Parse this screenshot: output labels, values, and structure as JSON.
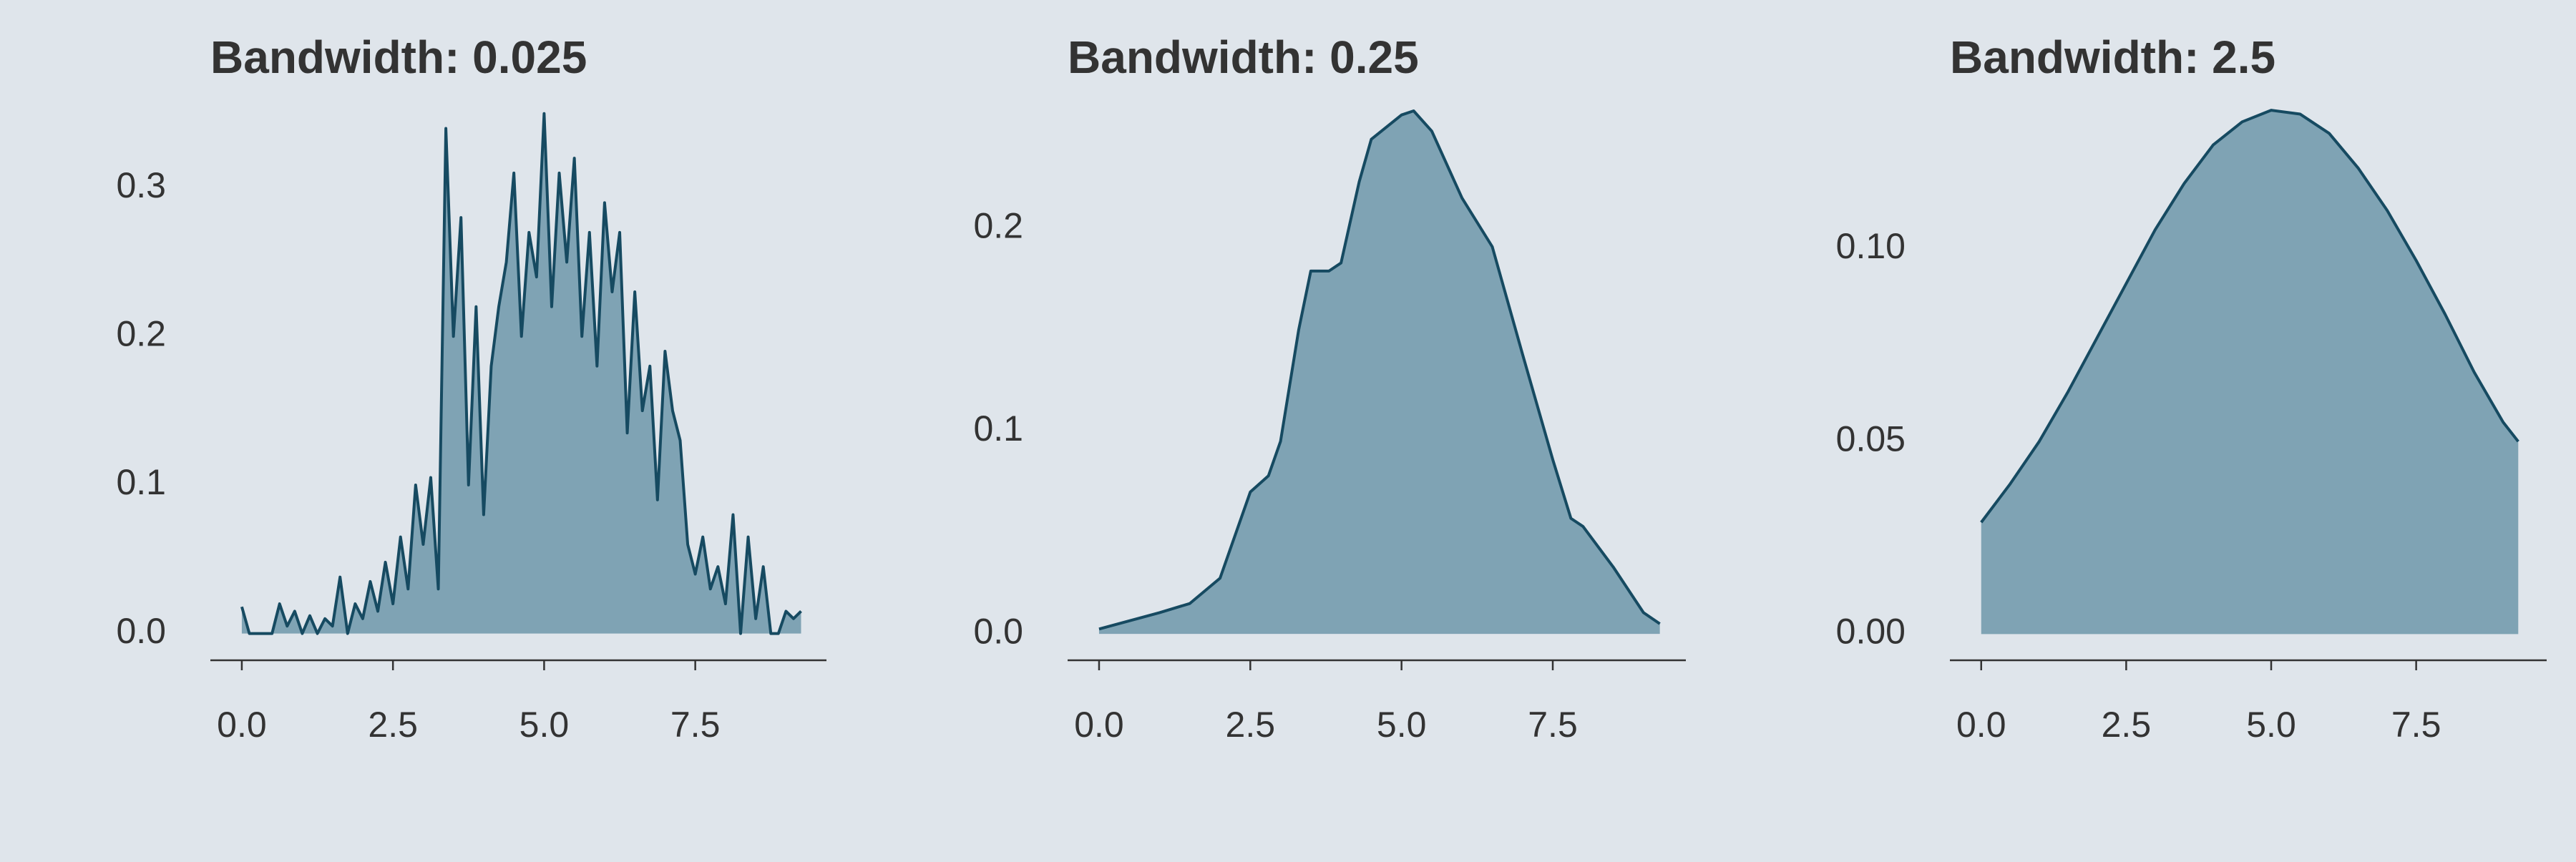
{
  "chart_data": [
    {
      "type": "area",
      "title": "Bandwidth: 0.025",
      "x": [
        0,
        0.125,
        0.25,
        0.375,
        0.5,
        0.625,
        0.75,
        0.875,
        1.0,
        1.125,
        1.25,
        1.375,
        1.5,
        1.625,
        1.75,
        1.875,
        2.0,
        2.125,
        2.25,
        2.375,
        2.5,
        2.625,
        2.75,
        2.875,
        3.0,
        3.125,
        3.25,
        3.375,
        3.5,
        3.625,
        3.75,
        3.875,
        4.0,
        4.125,
        4.25,
        4.375,
        4.5,
        4.625,
        4.75,
        4.875,
        5.0,
        5.125,
        5.25,
        5.375,
        5.5,
        5.625,
        5.75,
        5.875,
        6.0,
        6.125,
        6.25,
        6.375,
        6.5,
        6.625,
        6.75,
        6.875,
        7.0,
        7.125,
        7.25,
        7.375,
        7.5,
        7.625,
        7.75,
        7.875,
        8.0,
        8.125,
        8.25,
        8.375,
        8.5,
        8.625,
        8.75,
        8.875,
        9.0,
        9.125,
        9.25
      ],
      "values": [
        0.018,
        0.0,
        0.0,
        0.0,
        0.0,
        0.02,
        0.005,
        0.015,
        0.0,
        0.012,
        0.0,
        0.01,
        0.005,
        0.038,
        0.0,
        0.02,
        0.01,
        0.035,
        0.015,
        0.048,
        0.02,
        0.065,
        0.03,
        0.1,
        0.06,
        0.105,
        0.03,
        0.34,
        0.2,
        0.28,
        0.1,
        0.22,
        0.08,
        0.18,
        0.22,
        0.25,
        0.31,
        0.2,
        0.27,
        0.24,
        0.35,
        0.22,
        0.31,
        0.25,
        0.32,
        0.2,
        0.27,
        0.18,
        0.29,
        0.23,
        0.27,
        0.135,
        0.23,
        0.15,
        0.18,
        0.09,
        0.19,
        0.15,
        0.13,
        0.06,
        0.04,
        0.065,
        0.03,
        0.045,
        0.02,
        0.08,
        0.0,
        0.065,
        0.01,
        0.045,
        0.0,
        0.0,
        0.015,
        0.01,
        0.015
      ],
      "xlim": [
        -0.52,
        9.67
      ],
      "ylim": [
        -0.018,
        0.36
      ],
      "xticks": [
        {
          "value": 0,
          "label": "0.0"
        },
        2.5,
        {
          "value": 5,
          "label": "5.0"
        },
        7.5
      ],
      "yticks": [
        {
          "value": 0,
          "label": "0.0"
        },
        0.1,
        0.2,
        0.3
      ],
      "color": "#7fa3b4",
      "line_color": "#164a61"
    },
    {
      "type": "area",
      "title": "Bandwidth: 0.25",
      "x": [
        0,
        1,
        1.5,
        2,
        2.5,
        2.8,
        3,
        3.3,
        3.5,
        3.8,
        4.0,
        4.3,
        4.5,
        5.0,
        5.2,
        5.5,
        6,
        6.5,
        7,
        7.5,
        7.8,
        8.0,
        8.5,
        9,
        9.27
      ],
      "values": [
        0.0024,
        0.0105,
        0.015,
        0.0275,
        0.07,
        0.078,
        0.095,
        0.15,
        0.179,
        0.179,
        0.183,
        0.223,
        0.244,
        0.256,
        0.258,
        0.248,
        0.215,
        0.191,
        0.138,
        0.086,
        0.057,
        0.053,
        0.033,
        0.0105,
        0.005
      ],
      "xlim": [
        -0.52,
        9.7
      ],
      "ylim": [
        -0.013,
        0.264
      ],
      "xticks": [
        {
          "value": 0,
          "label": "0.0"
        },
        2.5,
        {
          "value": 5,
          "label": "5.0"
        },
        7.5
      ],
      "yticks": [
        {
          "value": 0,
          "label": "0.0"
        },
        0.1,
        0.2
      ],
      "color": "#7fa3b4",
      "line_color": "#164a61"
    },
    {
      "type": "area",
      "title": "Bandwidth: 2.5",
      "x": [
        0,
        0.5,
        1,
        1.5,
        2,
        2.5,
        3,
        3.5,
        4,
        4.5,
        5,
        5.5,
        6,
        6.5,
        7,
        7.5,
        8,
        8.5,
        9,
        9.26
      ],
      "values": [
        0.029,
        0.039,
        0.05,
        0.063,
        0.077,
        0.091,
        0.105,
        0.117,
        0.127,
        0.133,
        0.136,
        0.135,
        0.13,
        0.121,
        0.11,
        0.097,
        0.083,
        0.068,
        0.055,
        0.05
      ],
      "xlim": [
        -0.54,
        9.75
      ],
      "ylim": [
        -0.0068,
        0.139
      ],
      "xticks": [
        {
          "value": 0,
          "label": "0.0"
        },
        2.5,
        {
          "value": 5,
          "label": "5.0"
        },
        7.5
      ],
      "yticks": [
        {
          "value": 0,
          "label": "0.00"
        },
        0.05,
        {
          "value": 0.1,
          "label": "0.10"
        }
      ],
      "color": "#7fa3b4",
      "line_color": "#164a61"
    }
  ]
}
